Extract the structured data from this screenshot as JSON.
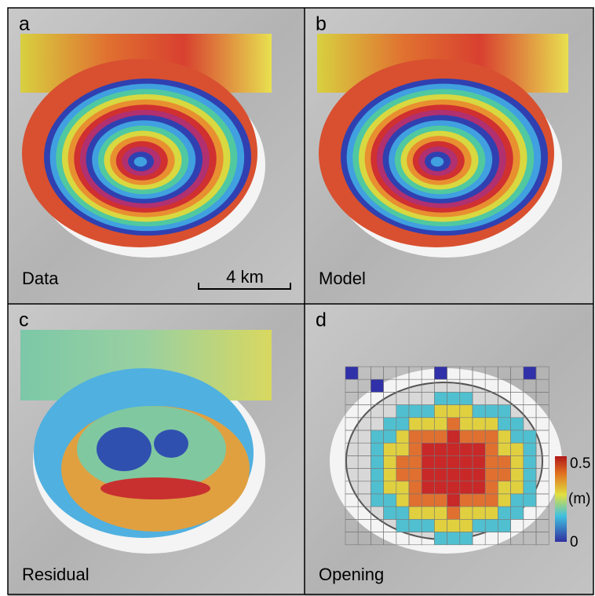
{
  "figure": {
    "panels": [
      {
        "letter": "a",
        "label": "Data"
      },
      {
        "letter": "b",
        "label": "Model"
      },
      {
        "letter": "c",
        "label": "Residual"
      },
      {
        "letter": "d",
        "label": "Opening"
      }
    ],
    "scale_bar": "4 km",
    "colorbar": {
      "max": "0.5",
      "unit": "(m)",
      "min": "0"
    }
  }
}
